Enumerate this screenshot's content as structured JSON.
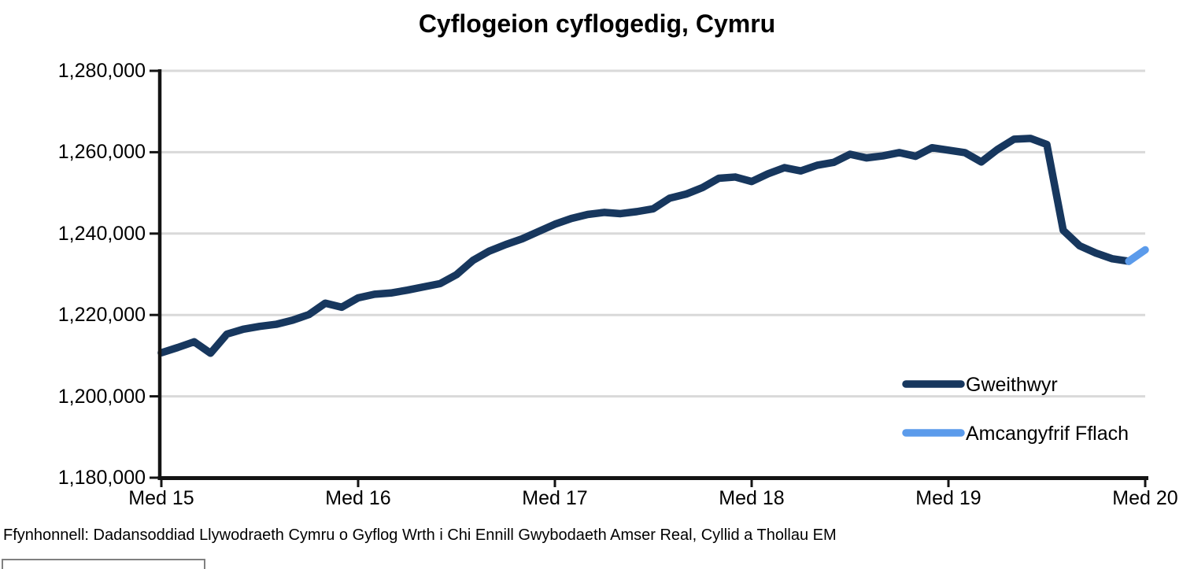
{
  "chart_data": {
    "type": "line",
    "title": "Cyflogeion cyflogedig, Cymru",
    "source": "Ffynhonnell: Dadansoddiad Llywodraeth Cymru o Gyflog Wrth i Chi Ennill Gwybodaeth Amser Real, Cyllid a Thollau EM",
    "x_tick_labels": [
      "Med 15",
      "Med 16",
      "Med 17",
      "Med 18",
      "Med 19",
      "Med 20"
    ],
    "y_tick_labels": [
      "1,280,000",
      "1,260,000",
      "1,240,000",
      "1,220,000",
      "1,200,000",
      "1,180,000"
    ],
    "y_tick_values": [
      1280000,
      1260000,
      1240000,
      1220000,
      1200000,
      1180000
    ],
    "ylim": [
      1180000,
      1280000
    ],
    "months_per_tick": 12,
    "grid": true,
    "legend_position": "inside-right",
    "colors": {
      "grid": "#D9D9D9",
      "axis": "#141414"
    },
    "series": [
      {
        "name": "Gweithwyr",
        "color": "#17375E",
        "start_index": 0,
        "values": [
          1210700,
          1212000,
          1213400,
          1210600,
          1215300,
          1216500,
          1217200,
          1217700,
          1218700,
          1220100,
          1222900,
          1221900,
          1224200,
          1225100,
          1225400,
          1226100,
          1226900,
          1227700,
          1229900,
          1233400,
          1235700,
          1237300,
          1238700,
          1240500,
          1242300,
          1243700,
          1244700,
          1245200,
          1244900,
          1245400,
          1246100,
          1248700,
          1249700,
          1251300,
          1253600,
          1253900,
          1252800,
          1254700,
          1256200,
          1255400,
          1256800,
          1257500,
          1259500,
          1258600,
          1259100,
          1259900,
          1259000,
          1261100,
          1260500,
          1259900,
          1257600,
          1260700,
          1263200,
          1263400,
          1261900,
          1240800,
          1237000,
          1235200,
          1233800,
          1233200
        ]
      },
      {
        "name": "Amcangyfrif Fflach",
        "color": "#5B9BEB",
        "start_index": 59,
        "values": [
          1233200,
          1236000
        ]
      }
    ]
  }
}
